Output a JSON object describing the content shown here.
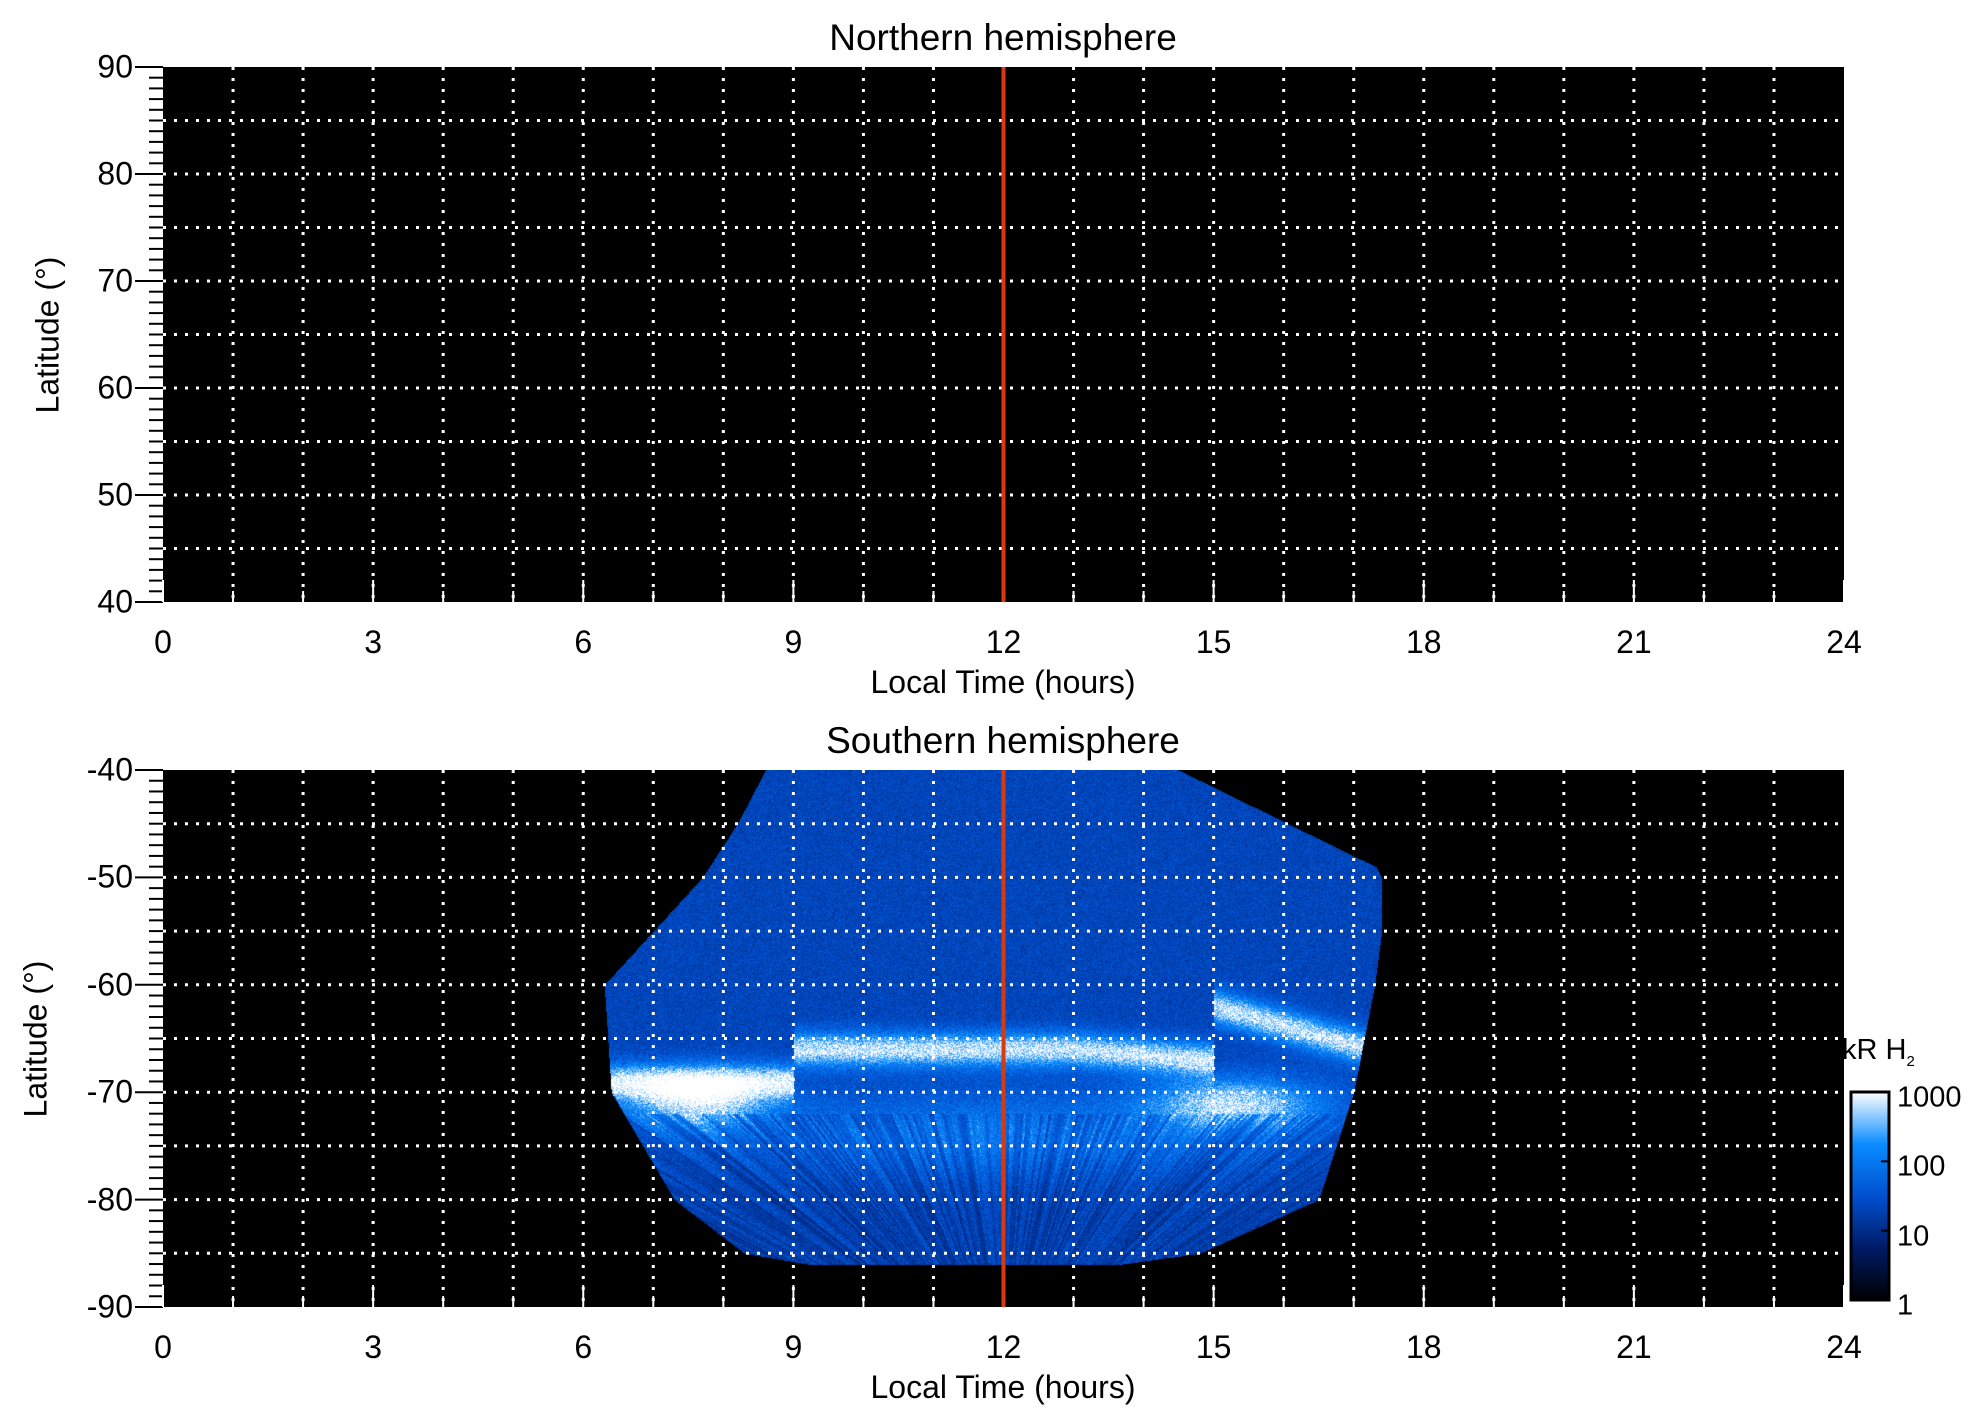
{
  "chart_data": [
    {
      "type": "heatmap",
      "title": "Northern hemisphere",
      "xlabel": "Local Time (hours)",
      "ylabel": "Latitude (°)",
      "xlim": [
        0,
        24
      ],
      "ylim": [
        40,
        90
      ],
      "xticks": [
        "0",
        "3",
        "6",
        "9",
        "12",
        "15",
        "18",
        "21",
        "24"
      ],
      "yticks": [
        "40",
        "50",
        "60",
        "70",
        "80",
        "90"
      ],
      "grid": true,
      "reference_line": {
        "x": 12,
        "color": "#d8390f"
      },
      "data_coverage": "none"
    },
    {
      "type": "heatmap",
      "title": "Southern hemisphere",
      "xlabel": "Local Time (hours)",
      "ylabel": "Latitude (°)",
      "xlim": [
        0,
        24
      ],
      "ylim": [
        -90,
        -40
      ],
      "xticks": [
        "0",
        "3",
        "6",
        "9",
        "12",
        "15",
        "18",
        "21",
        "24"
      ],
      "yticks": [
        "-90",
        "-80",
        "-70",
        "-60",
        "-50",
        "-40"
      ],
      "grid": true,
      "reference_line": {
        "x": 12,
        "color": "#d8390f"
      },
      "data_coverage": {
        "local_time_range": [
          6.3,
          17.4
        ],
        "latitude_range": [
          -86,
          -40
        ]
      },
      "main_oval_latitude": [
        -72,
        -61
      ],
      "colorbar": {
        "label": "kR H",
        "label_subscript": "2",
        "scale": "log",
        "range": [
          1,
          1000
        ],
        "ticks": [
          "1",
          "10",
          "100",
          "1000"
        ],
        "colors": [
          "#000000",
          "#001a66",
          "#0050d0",
          "#0a8cff",
          "#ffffff"
        ]
      }
    }
  ]
}
